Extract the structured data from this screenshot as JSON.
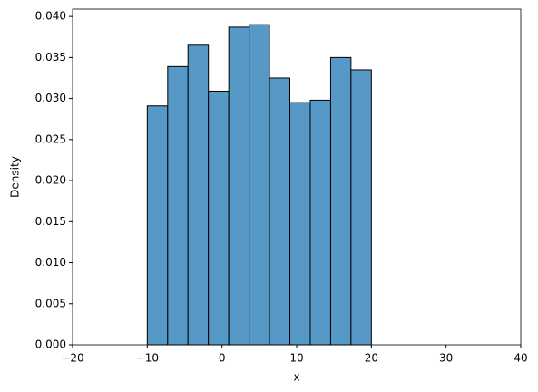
{
  "chart_data": {
    "type": "histogram",
    "xlabel": "x",
    "ylabel": "Density",
    "bins": [
      -10,
      -7.27,
      -4.55,
      -1.82,
      0.91,
      3.64,
      6.36,
      9.09,
      11.82,
      14.55,
      17.27,
      20
    ],
    "values": [
      0.0291,
      0.0339,
      0.0365,
      0.0309,
      0.0387,
      0.039,
      0.0325,
      0.0295,
      0.0298,
      0.035,
      0.0335
    ],
    "color": "#5698c6",
    "edgecolor": "#000000",
    "xlim": [
      -20,
      40
    ],
    "xticks": [
      {
        "value": -20,
        "label": "−20"
      },
      {
        "value": -10,
        "label": "−10"
      },
      0,
      10,
      20,
      30,
      40
    ],
    "ylim": [
      0,
      0.0409
    ],
    "yticks": [
      {
        "value": 0,
        "label": "0.000"
      },
      {
        "value": 0.005,
        "label": "0.005"
      },
      {
        "value": 0.01,
        "label": "0.010"
      },
      {
        "value": 0.015,
        "label": "0.015"
      },
      {
        "value": 0.02,
        "label": "0.020"
      },
      {
        "value": 0.025,
        "label": "0.025"
      },
      {
        "value": 0.03,
        "label": "0.030"
      },
      {
        "value": 0.035,
        "label": "0.035"
      },
      {
        "value": 0.04,
        "label": "0.040"
      }
    ]
  }
}
